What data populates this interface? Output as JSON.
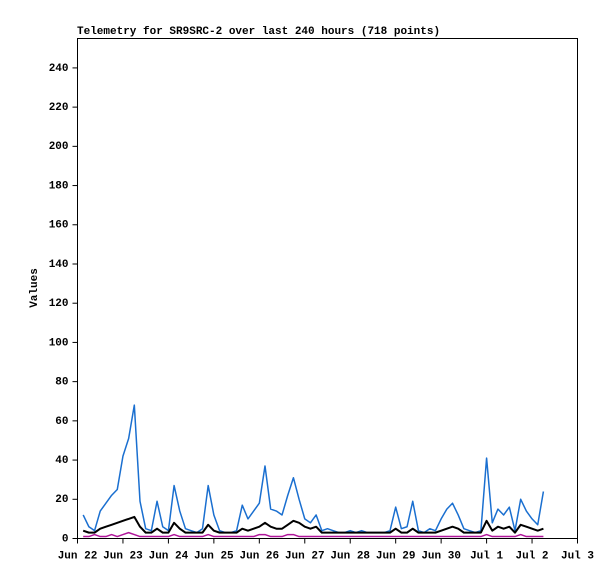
{
  "chart_data": {
    "type": "line",
    "title": "Telemetry for SR9SRC-2 over last 240 hours (718 points)",
    "y_label": "Values",
    "x": [
      0.125,
      0.25,
      0.375,
      0.5,
      0.625,
      0.75,
      0.875,
      1,
      1.125,
      1.25,
      1.375,
      1.5,
      1.625,
      1.75,
      1.875,
      2,
      2.125,
      2.25,
      2.375,
      2.5,
      2.625,
      2.75,
      2.875,
      3,
      3.125,
      3.25,
      3.375,
      3.5,
      3.625,
      3.75,
      3.875,
      4,
      4.125,
      4.25,
      4.375,
      4.5,
      4.625,
      4.75,
      4.875,
      5,
      5.125,
      5.25,
      5.375,
      5.5,
      5.625,
      5.75,
      5.875,
      6,
      6.125,
      6.25,
      6.375,
      6.5,
      6.625,
      6.75,
      6.875,
      7,
      7.125,
      7.25,
      7.375,
      7.5,
      7.625,
      7.75,
      7.875,
      8,
      8.125,
      8.25,
      8.375,
      8.5,
      8.625,
      8.75,
      8.875,
      9,
      9.125,
      9.25,
      9.375,
      9.5,
      9.625,
      9.75,
      9.875,
      10,
      10.125,
      10.25
    ],
    "series": [
      {
        "color": "#1a6fd0",
        "values": [
          12,
          6,
          4,
          14,
          18,
          22,
          25,
          42,
          51,
          68,
          19,
          5,
          4,
          19,
          6,
          4,
          27,
          14,
          5,
          4,
          3,
          5,
          27,
          12,
          4,
          3,
          3,
          4,
          17,
          10,
          14,
          18,
          37,
          15,
          14,
          12,
          22,
          31,
          20,
          10,
          8,
          12,
          4,
          5,
          4,
          3,
          3,
          4,
          3,
          4,
          3,
          3,
          3,
          3,
          4,
          16,
          5,
          6,
          19,
          4,
          3,
          5,
          4,
          10,
          15,
          18,
          12,
          5,
          4,
          3,
          4,
          41,
          8,
          15,
          12,
          16,
          4,
          20,
          14,
          10,
          7,
          24
        ]
      },
      {
        "color": "#000000",
        "values": [
          4,
          3,
          3,
          5,
          6,
          7,
          8,
          9,
          10,
          11,
          6,
          3,
          3,
          5,
          3,
          3,
          8,
          5,
          3,
          3,
          3,
          3,
          7,
          4,
          3,
          3,
          3,
          3,
          5,
          4,
          5,
          6,
          8,
          6,
          5,
          5,
          7,
          9,
          8,
          6,
          5,
          6,
          3,
          3,
          3,
          3,
          3,
          3,
          3,
          3,
          3,
          3,
          3,
          3,
          3,
          5,
          3,
          3,
          5,
          3,
          3,
          3,
          3,
          4,
          5,
          6,
          5,
          3,
          3,
          3,
          3,
          9,
          4,
          6,
          5,
          6,
          3,
          7,
          6,
          5,
          4,
          5
        ]
      },
      {
        "color": "#b0169a",
        "values": [
          1,
          1,
          2,
          1,
          1,
          2,
          1,
          2,
          3,
          2,
          1,
          1,
          1,
          1,
          1,
          1,
          2,
          1,
          1,
          1,
          1,
          1,
          2,
          1,
          1,
          1,
          1,
          1,
          1,
          1,
          1,
          2,
          2,
          1,
          1,
          1,
          2,
          2,
          1,
          1,
          1,
          1,
          1,
          1,
          1,
          1,
          1,
          1,
          1,
          1,
          1,
          1,
          1,
          1,
          1,
          1,
          1,
          1,
          1,
          1,
          1,
          1,
          1,
          1,
          1,
          1,
          1,
          1,
          1,
          1,
          1,
          2,
          1,
          1,
          1,
          1,
          1,
          2,
          1,
          1,
          1,
          1
        ]
      }
    ],
    "xlim": [
      0,
      11
    ],
    "xticks": [
      {
        "value": 0,
        "label": "Jun 22"
      },
      {
        "value": 1,
        "label": "Jun 23"
      },
      {
        "value": 2,
        "label": "Jun 24"
      },
      {
        "value": 3,
        "label": "Jun 25"
      },
      {
        "value": 4,
        "label": "Jun 26"
      },
      {
        "value": 5,
        "label": "Jun 27"
      },
      {
        "value": 6,
        "label": "Jun 28"
      },
      {
        "value": 7,
        "label": "Jun 29"
      },
      {
        "value": 8,
        "label": "Jun 30"
      },
      {
        "value": 9,
        "label": "Jul 1"
      },
      {
        "value": 10,
        "label": "Jul 2"
      },
      {
        "value": 11,
        "label": "Jul 3"
      }
    ],
    "ylim": [
      0,
      255
    ],
    "yticks": [
      0,
      20,
      40,
      60,
      80,
      100,
      120,
      140,
      160,
      180,
      200,
      220,
      240
    ],
    "grid": false
  }
}
